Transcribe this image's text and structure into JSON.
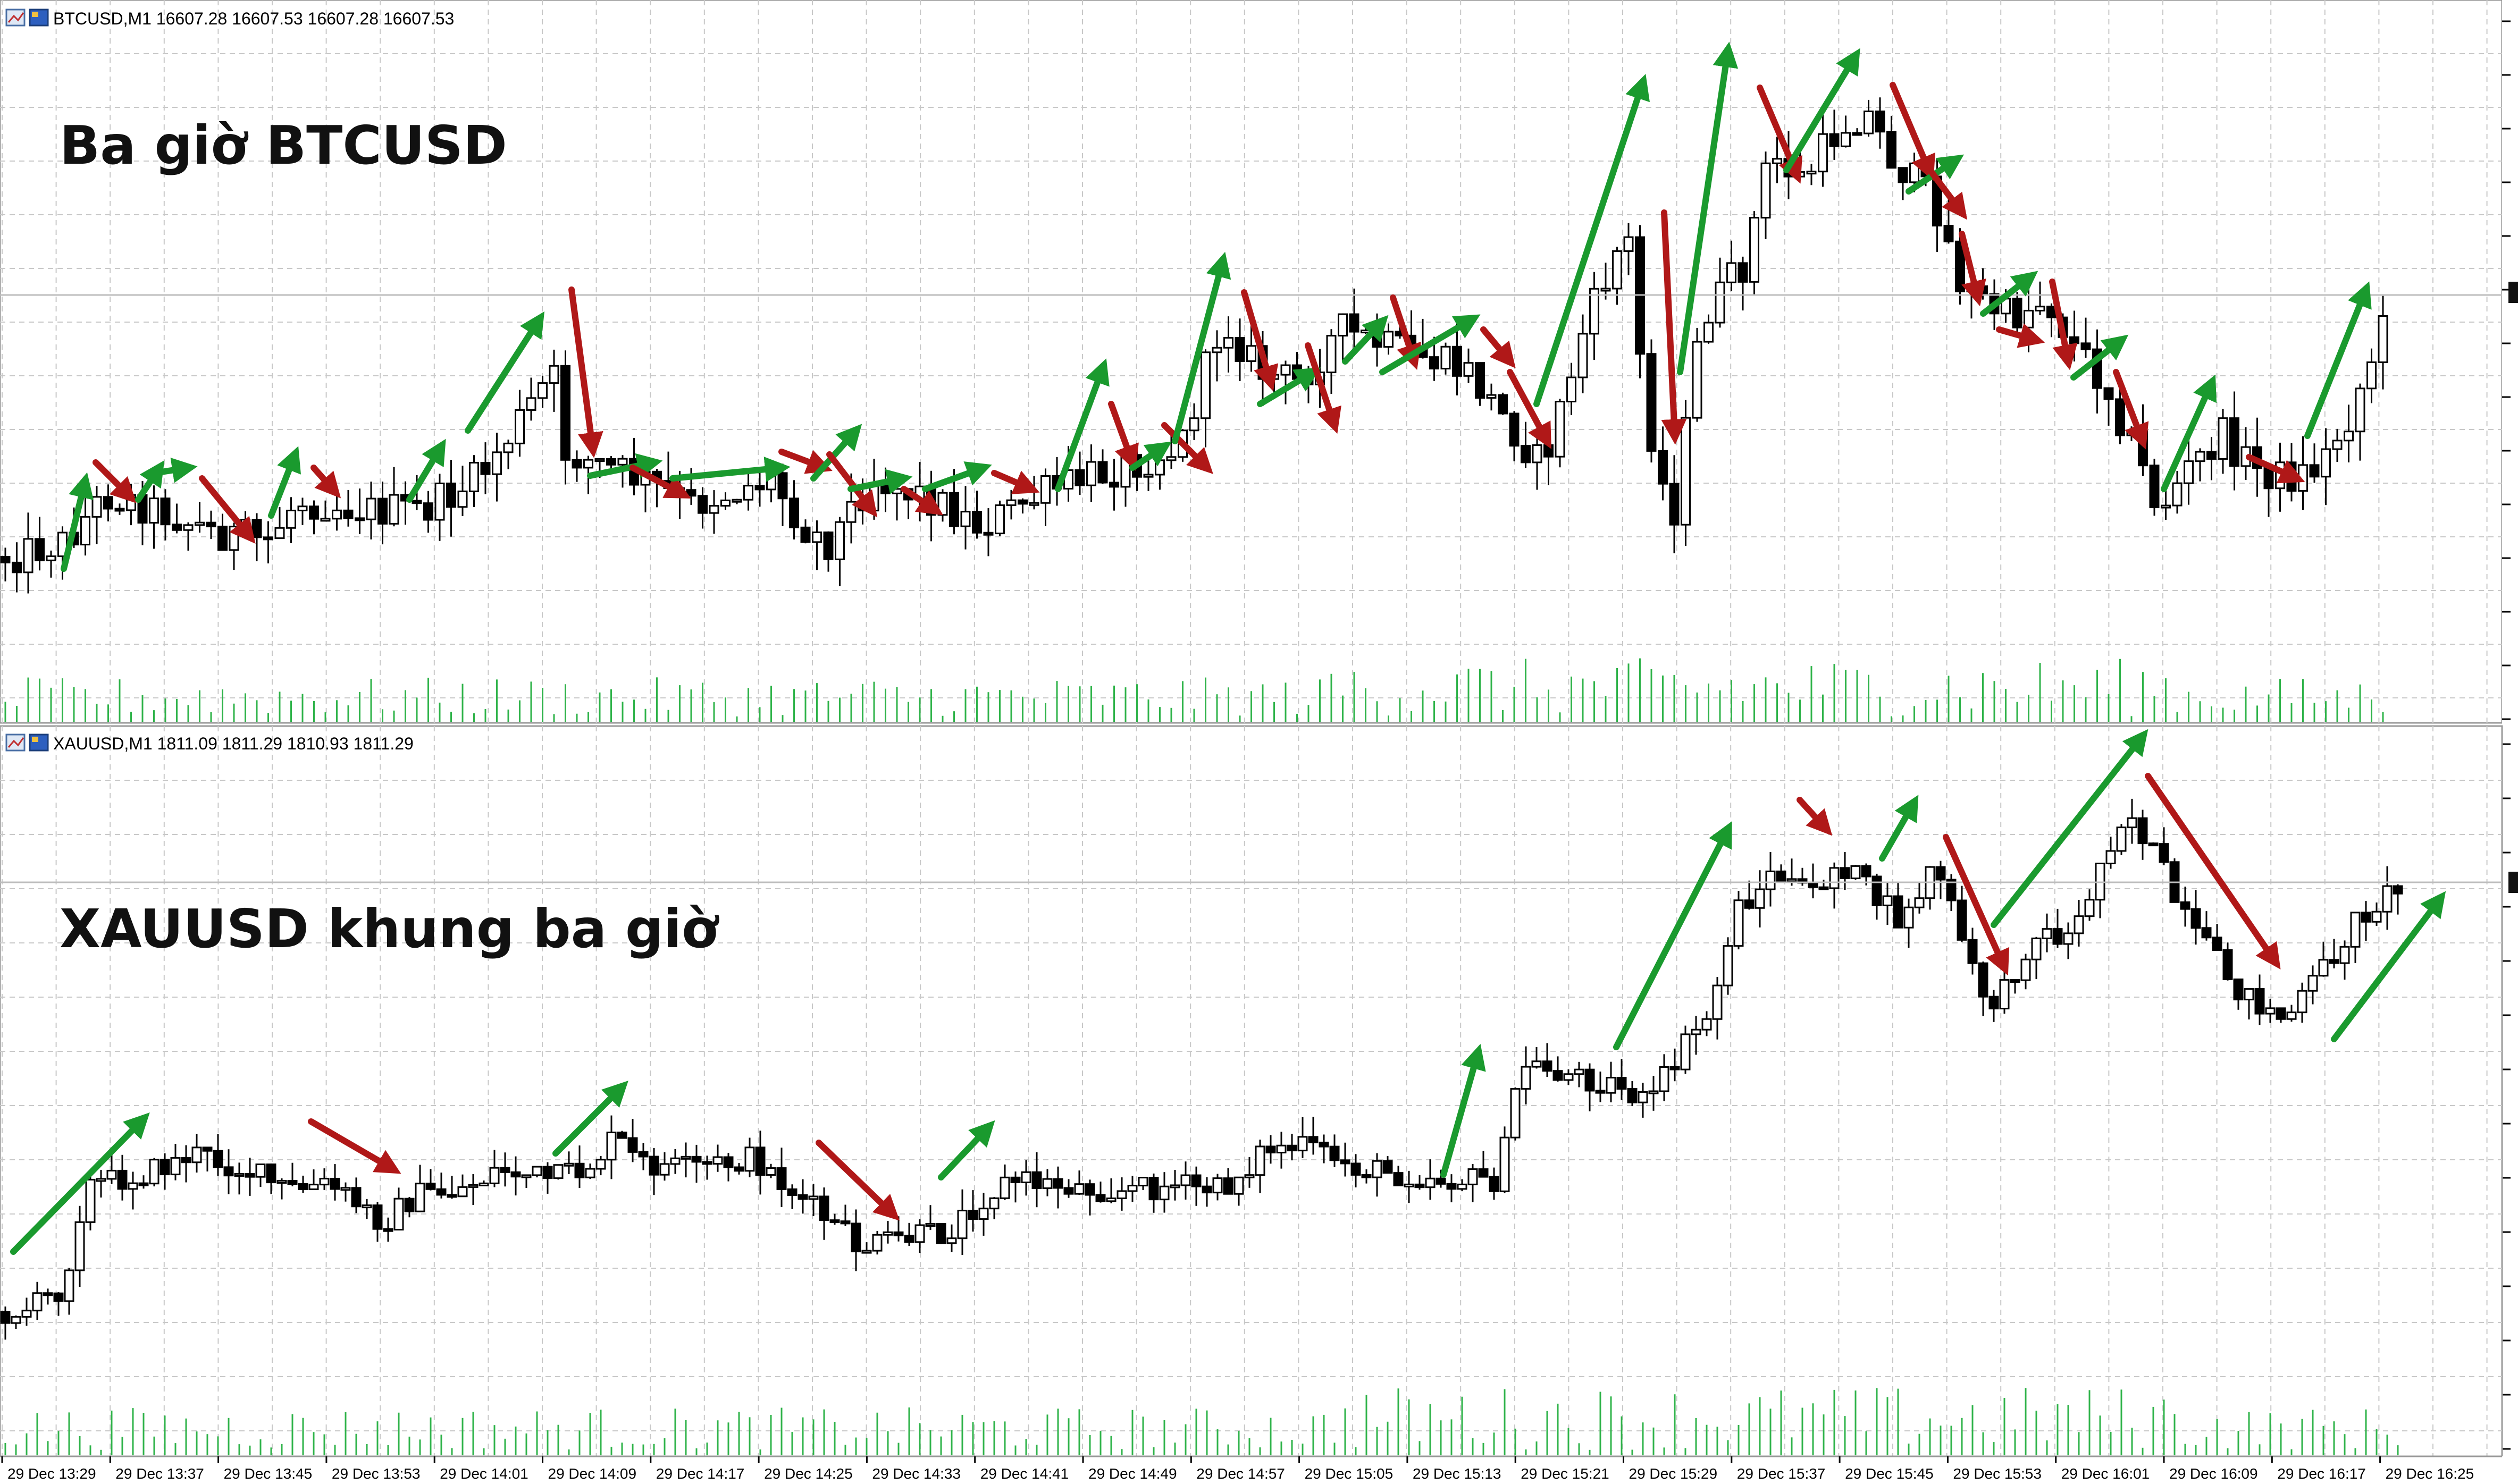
{
  "panes": [
    {
      "symbol_line": "BTCUSD,M1  16607.28 16607.53 16607.28 16607.53",
      "overlay_title": "Ba giờ BTCUSD",
      "chart_data": {
        "type": "candlestick",
        "symbol": "BTCUSD",
        "timeframe": "M1",
        "ohlc_readout": [
          16607.28,
          16607.53,
          16607.28,
          16607.53
        ],
        "grid": true,
        "volume_bars": true
      }
    },
    {
      "symbol_line": "XAUUSD,M1  1811.09 1811.29 1810.93 1811.29",
      "overlay_title": "XAUUSD khung ba giờ",
      "chart_data": {
        "type": "candlestick",
        "symbol": "XAUUSD",
        "timeframe": "M1",
        "ohlc_readout": [
          1811.09,
          1811.29,
          1810.93,
          1811.29
        ],
        "grid": true,
        "volume_bars": true
      }
    }
  ],
  "time_axis": [
    "29 Dec 13:29",
    "29 Dec 13:37",
    "29 Dec 13:45",
    "29 Dec 13:53",
    "29 Dec 14:01",
    "29 Dec 14:09",
    "29 Dec 14:17",
    "29 Dec 14:25",
    "29 Dec 14:33",
    "29 Dec 14:41",
    "29 Dec 14:49",
    "29 Dec 14:57",
    "29 Dec 15:05",
    "29 Dec 15:13",
    "29 Dec 15:21",
    "29 Dec 15:29",
    "29 Dec 15:37",
    "29 Dec 15:45",
    "29 Dec 15:53",
    "29 Dec 16:01",
    "29 Dec 16:09",
    "29 Dec 16:17",
    "29 Dec 16:25"
  ],
  "colors": {
    "up_arrow": "#1a9a2e",
    "down_arrow": "#b01818",
    "volume": "#2fb34a",
    "grid": "#c8c8c8",
    "candle": "#000000"
  }
}
